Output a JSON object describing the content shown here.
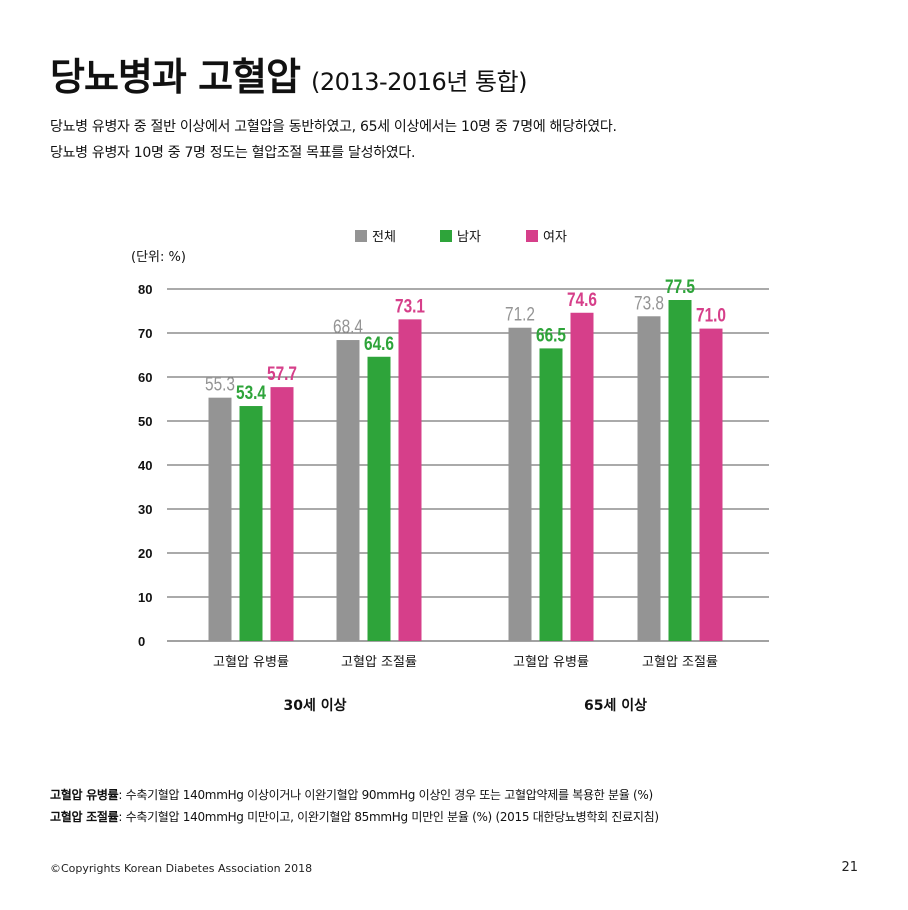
{
  "header": {
    "title": "당뇨병과 고혈압",
    "subtitle": "(2013-2016년 통합)"
  },
  "description": {
    "line1": "당뇨병 유병자 중 절반 이상에서 고혈압을 동반하였고, 65세 이상에서는 10명 중 7명에 해당하였다.",
    "line2": "당뇨병 유병자 10명 중 7명 정도는 혈압조절 목표를 달성하였다."
  },
  "colors": {
    "total": "#949494",
    "male": "#2ea43a",
    "female": "#d63f8a"
  },
  "chart_data": {
    "type": "bar",
    "unit_label": "(단위: %)",
    "ylim": [
      0,
      80
    ],
    "yticks": [
      0,
      10,
      20,
      30,
      40,
      50,
      60,
      70,
      80
    ],
    "grid": true,
    "legend_position": "top",
    "categories": [
      "고혈압 유병률",
      "고혈압 조절률",
      "고혈압 유병률",
      "고혈압 조절률"
    ],
    "groups": [
      {
        "label": "30세 이상",
        "categories": [
          0,
          1
        ]
      },
      {
        "label": "65세 이상",
        "categories": [
          2,
          3
        ]
      }
    ],
    "series": [
      {
        "name": "전체",
        "key": "total",
        "values": [
          55.3,
          68.4,
          71.2,
          73.8
        ],
        "labels": [
          "55.3",
          "68.4",
          "71.2",
          "73.8"
        ]
      },
      {
        "name": "남자",
        "key": "male",
        "values": [
          53.4,
          64.6,
          66.5,
          77.5
        ],
        "labels": [
          "53.4",
          "64.6",
          "66.5",
          "77.5"
        ]
      },
      {
        "name": "여자",
        "key": "female",
        "values": [
          57.7,
          73.1,
          74.6,
          71.0
        ],
        "labels": [
          "57.7",
          "73.1",
          "74.6",
          "71.0"
        ]
      }
    ]
  },
  "notes": {
    "note1_term": "고혈압 유병률",
    "note1_text": ": 수축기혈압 140mmHg 이상이거나 이완기혈압 90mmHg 이상인 경우 또는 고혈압약제를 복용한 분율 (%)",
    "note2_term": "고혈압 조절률",
    "note2_text": ": 수축기혈압 140mmHg 미만이고, 이완기혈압 85mmHg 미만인 분율 (%) (2015 대한당뇨병학회 진료지침)"
  },
  "footer": {
    "copyright": "©Copyrights Korean Diabetes Association 2018",
    "page_number": "21"
  }
}
